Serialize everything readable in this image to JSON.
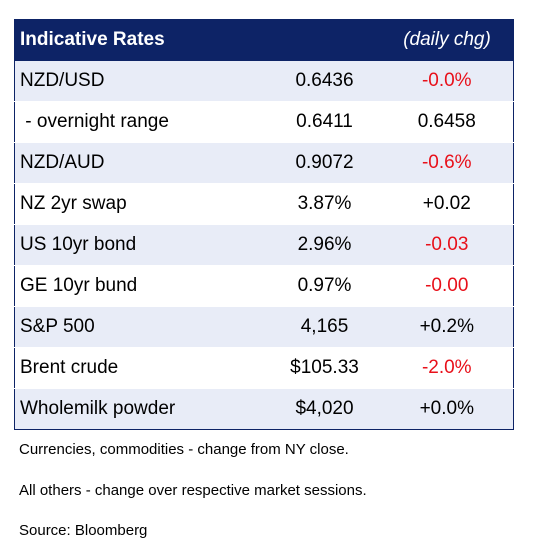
{
  "table": {
    "title": "Indicative Rates",
    "change_header": "(daily chg)",
    "rows": [
      {
        "name": "NZD/USD",
        "value": "0.6436",
        "change": "-0.0%",
        "change_color": "#e8101a"
      },
      {
        "name": " - overnight range",
        "value": "0.6411",
        "change": "0.6458",
        "change_color": "#000000"
      },
      {
        "name": "NZD/AUD",
        "value": "0.9072",
        "change": "-0.6%",
        "change_color": "#e8101a"
      },
      {
        "name": "NZ 2yr swap",
        "value": "3.87%",
        "change": "+0.02",
        "change_color": "#000000"
      },
      {
        "name": "US 10yr bond",
        "value": "2.96%",
        "change": "-0.03",
        "change_color": "#e8101a"
      },
      {
        "name": "GE 10yr bund",
        "value": "0.97%",
        "change": "-0.00",
        "change_color": "#e8101a"
      },
      {
        "name": "S&P 500",
        "value": "4,165",
        "change": "+0.2%",
        "change_color": "#000000"
      },
      {
        "name": "Brent crude",
        "value": "$105.33",
        "change": "-2.0%",
        "change_color": "#e8101a"
      },
      {
        "name": "Wholemilk powder",
        "value": "$4,020",
        "change": "+0.0%",
        "change_color": "#000000"
      }
    ]
  },
  "notes": {
    "currencies": "Currencies, commodities - change from NY close.",
    "others": "All others - change over respective market sessions.",
    "source": "Source: Bloomberg"
  },
  "colors": {
    "header_bg": "#0d2366",
    "band_bg": "#e8ecf7",
    "negative": "#e8101a"
  }
}
